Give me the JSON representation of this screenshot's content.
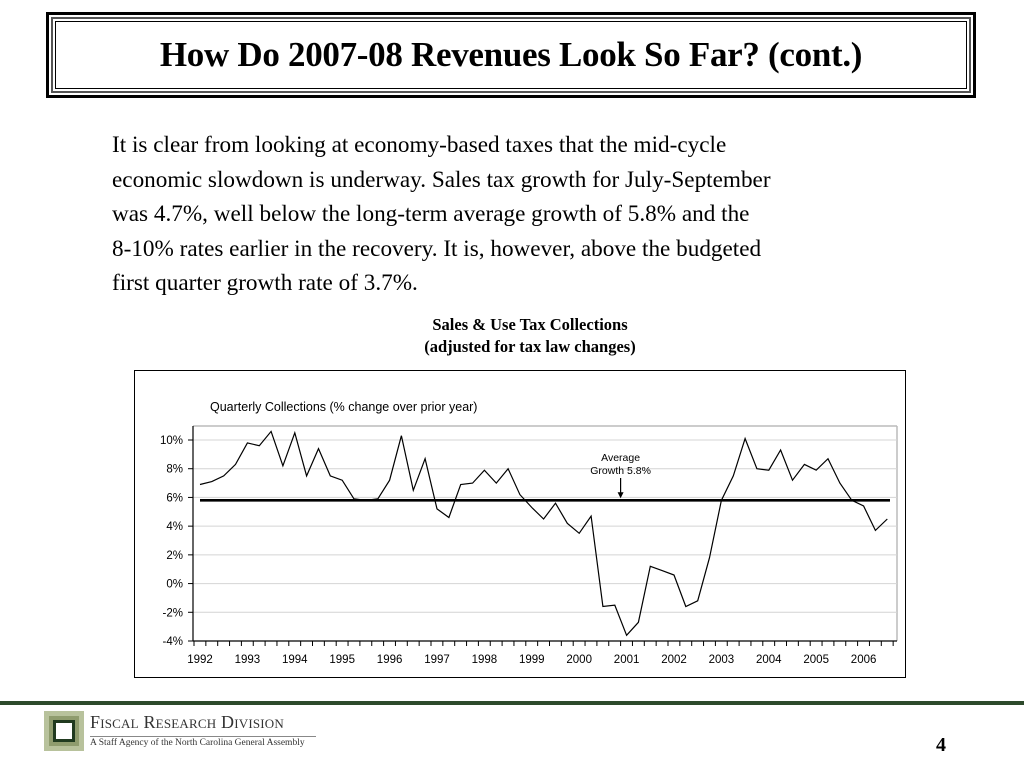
{
  "slide": {
    "title": "How Do 2007-08 Revenues Look So Far? (cont.)",
    "paragraph_lines": [
      "It is clear from looking at economy-based taxes that the mid-cycle",
      "economic slowdown is underway. Sales tax growth for July-September",
      "was 4.7%, well below the long-term average growth of 5.8% and the",
      "8-10% rates earlier in the recovery.  It is, however, above the budgeted",
      "first quarter growth rate of  3.7%."
    ],
    "chart_heading_line1": "Sales & Use Tax Collections",
    "chart_heading_line2": "(adjusted for tax law changes)",
    "page_number": "4"
  },
  "footer": {
    "org_name": "Fiscal Research Division",
    "org_subtitle": "A Staff Agency of the North Carolina General Assembly",
    "rule_color": "#2d4a2b"
  },
  "chart_data": {
    "type": "line",
    "title": "Quarterly Collections (% change over prior year)",
    "xlabel": "",
    "ylabel": "",
    "x_tick_labels": [
      "1992",
      "1993",
      "1994",
      "1995",
      "1996",
      "1997",
      "1998",
      "1999",
      "2000",
      "2001",
      "2002",
      "2003",
      "2004",
      "2005",
      "2006"
    ],
    "x_start_year": 1992,
    "periods_per_year": 4,
    "ylim": [
      -4,
      10
    ],
    "y_ticks": [
      -4,
      -2,
      0,
      2,
      4,
      6,
      8,
      10
    ],
    "y_tick_labels": [
      "-4%",
      "-2%",
      "0%",
      "2%",
      "4%",
      "6%",
      "8%",
      "10%"
    ],
    "grid": true,
    "series": [
      {
        "name": "Quarterly Collections (% change over prior year)",
        "color": "#000000",
        "values": [
          6.9,
          7.1,
          7.5,
          8.3,
          9.8,
          9.6,
          10.6,
          8.2,
          10.5,
          7.5,
          9.4,
          7.5,
          7.2,
          5.9,
          5.8,
          5.9,
          7.2,
          10.3,
          6.5,
          8.7,
          5.2,
          4.6,
          6.9,
          7.0,
          7.9,
          7.0,
          8.0,
          6.2,
          5.3,
          4.5,
          5.6,
          4.2,
          3.5,
          4.7,
          -1.6,
          -1.5,
          -3.6,
          -2.7,
          1.2,
          0.9,
          0.6,
          -1.6,
          -1.2,
          1.8,
          5.8,
          7.5,
          10.1,
          8.0,
          7.9,
          9.3,
          7.2,
          8.3,
          7.9,
          8.7,
          7.0,
          5.8,
          5.4,
          3.7,
          4.5
        ]
      }
    ],
    "reference_line": {
      "label": "Average Growth 5.8%",
      "value": 5.8,
      "color": "#000000"
    },
    "annotation": {
      "line1": "Average",
      "line2": "Growth 5.8%",
      "arrow_at_year": 2001.0
    }
  }
}
